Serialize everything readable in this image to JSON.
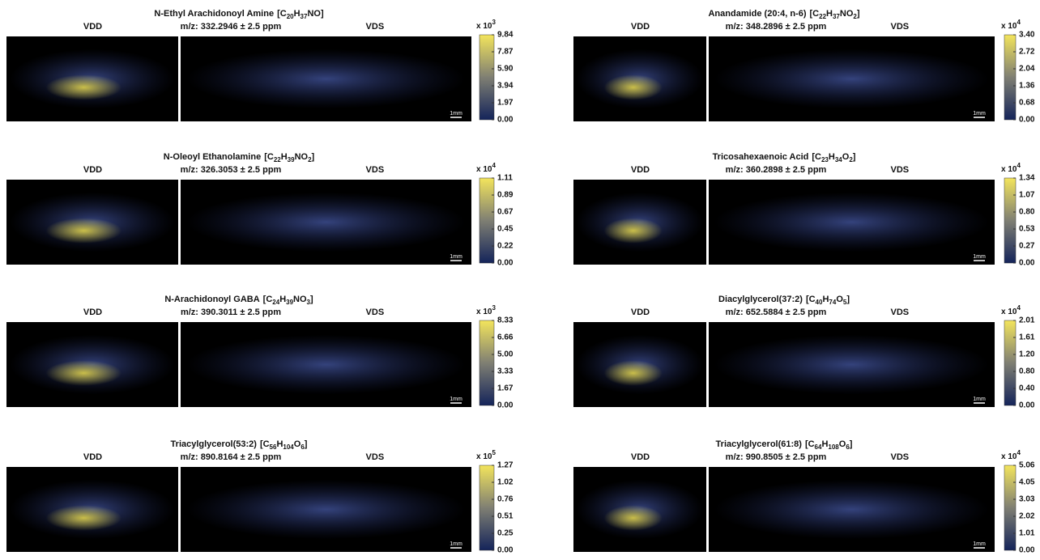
{
  "panels": [
    {
      "name": "N-Ethyl Arachidonoyl Amine",
      "formula": [
        "[C",
        "20",
        "H",
        "37",
        "NO]"
      ],
      "mz": "m/z: 332.2946 ± 2.5 ppm",
      "left_label": "VDD",
      "right_label": "VDS",
      "scale_bar": "1mm",
      "multiplier": [
        "x 10",
        "3"
      ],
      "ticks": [
        "9.84",
        "7.87",
        "5.90",
        "3.94",
        "1.97",
        "0.00"
      ]
    },
    {
      "name": "Anandamide (20:4, n-6)",
      "formula": [
        "[C",
        "22",
        "H",
        "37",
        "NO",
        "2",
        "]"
      ],
      "mz": "m/z: 348.2896 ± 2.5 ppm",
      "left_label": "VDD",
      "right_label": "VDS",
      "scale_bar": "1mm",
      "multiplier": [
        "x 10",
        "4"
      ],
      "ticks": [
        "3.40",
        "2.72",
        "2.04",
        "1.36",
        "0.68",
        "0.00"
      ]
    },
    {
      "name": "N-Oleoyl Ethanolamine",
      "formula": [
        "[C",
        "22",
        "H",
        "39",
        "NO",
        "2",
        "]"
      ],
      "mz": "m/z: 326.3053 ± 2.5 ppm",
      "left_label": "VDD",
      "right_label": "VDS",
      "scale_bar": "1mm",
      "multiplier": [
        "x 10",
        "4"
      ],
      "ticks": [
        "1.11",
        "0.89",
        "0.67",
        "0.45",
        "0.22",
        "0.00"
      ]
    },
    {
      "name": "Tricosahexaenoic Acid",
      "formula": [
        "[C",
        "23",
        "H",
        "34",
        "O",
        "2",
        "]"
      ],
      "mz": "m/z: 360.2898 ± 2.5 ppm",
      "left_label": "VDD",
      "right_label": "VDS",
      "scale_bar": "1mm",
      "multiplier": [
        "x 10",
        "4"
      ],
      "ticks": [
        "1.34",
        "1.07",
        "0.80",
        "0.53",
        "0.27",
        "0.00"
      ]
    },
    {
      "name": "N-Arachidonoyl GABA",
      "formula": [
        "[C",
        "24",
        "H",
        "39",
        "NO",
        "3",
        "]"
      ],
      "mz": "m/z: 390.3011 ± 2.5 ppm",
      "left_label": "VDD",
      "right_label": "VDS",
      "scale_bar": "1mm",
      "multiplier": [
        "x 10",
        "3"
      ],
      "ticks": [
        "8.33",
        "6.66",
        "5.00",
        "3.33",
        "1.67",
        "0.00"
      ]
    },
    {
      "name": "Diacylglycerol(37:2)",
      "formula": [
        "[C",
        "40",
        "H",
        "74",
        "O",
        "5",
        "]"
      ],
      "mz": "m/z: 652.5884 ± 2.5 ppm",
      "left_label": "VDD",
      "right_label": "VDS",
      "scale_bar": "1mm",
      "multiplier": [
        "x 10",
        "4"
      ],
      "ticks": [
        "2.01",
        "1.61",
        "1.20",
        "0.80",
        "0.40",
        "0.00"
      ]
    },
    {
      "name": "Triacylglycerol(53:2)",
      "formula": [
        "[C",
        "56",
        "H",
        "104",
        "O",
        "6",
        "]"
      ],
      "mz": "m/z: 890.8164 ± 2.5 ppm",
      "left_label": "VDD",
      "right_label": "VDS",
      "scale_bar": "1mm",
      "multiplier": [
        "x 10",
        "5"
      ],
      "ticks": [
        "1.27",
        "1.02",
        "0.76",
        "0.51",
        "0.25",
        "0.00"
      ]
    },
    {
      "name": "Triacylglycerol(61:8)",
      "formula": [
        "[C",
        "64",
        "H",
        "108",
        "O",
        "6",
        "]"
      ],
      "mz": "m/z: 990.8505 ± 2.5 ppm",
      "left_label": "VDD",
      "right_label": "VDS",
      "scale_bar": "1mm",
      "multiplier": [
        "x 10",
        "4"
      ],
      "ticks": [
        "5.06",
        "4.05",
        "3.03",
        "2.02",
        "1.01",
        "0.00"
      ]
    }
  ]
}
